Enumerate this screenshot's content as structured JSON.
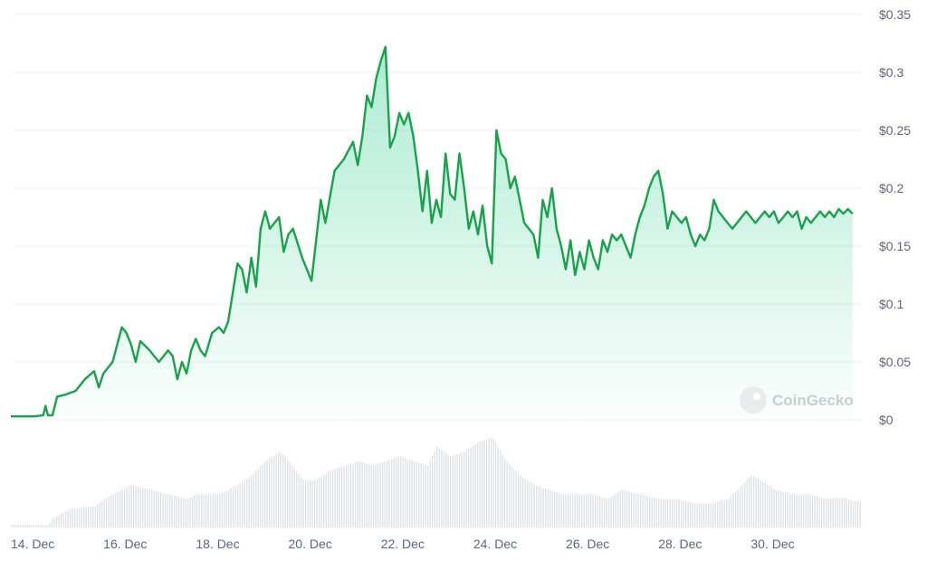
{
  "chart_data": {
    "type": "area",
    "title": "",
    "xlabel": "",
    "ylabel": "",
    "ylim": [
      0,
      0.35
    ],
    "y_ticks": [
      {
        "value": 0,
        "label": "$0"
      },
      {
        "value": 0.05,
        "label": "$0.05"
      },
      {
        "value": 0.1,
        "label": "$0.1"
      },
      {
        "value": 0.15,
        "label": "$0.15"
      },
      {
        "value": 0.2,
        "label": "$0.2"
      },
      {
        "value": 0.25,
        "label": "$0.25"
      },
      {
        "value": 0.3,
        "label": "$0.3"
      },
      {
        "value": 0.35,
        "label": "$0.35"
      }
    ],
    "x_ticks": [
      {
        "day": 14,
        "label": "14. Dec"
      },
      {
        "day": 16,
        "label": "16. Dec"
      },
      {
        "day": 18,
        "label": "18. Dec"
      },
      {
        "day": 20,
        "label": "20. Dec"
      },
      {
        "day": 22,
        "label": "22. Dec"
      },
      {
        "day": 24,
        "label": "24. Dec"
      },
      {
        "day": 26,
        "label": "26. Dec"
      },
      {
        "day": 28,
        "label": "28. Dec"
      },
      {
        "day": 30,
        "label": "30. Dec"
      }
    ],
    "xlim": [
      14,
      32.4
    ],
    "grid": true,
    "colors": {
      "line": "#16a34a",
      "area": "#16c784",
      "volume": "#dfe3e8",
      "grid": "#eff2f5"
    },
    "price": [
      [
        14.0,
        0.003
      ],
      [
        14.5,
        0.003
      ],
      [
        14.7,
        0.004
      ],
      [
        14.75,
        0.012
      ],
      [
        14.8,
        0.004
      ],
      [
        14.9,
        0.004
      ],
      [
        15.0,
        0.02
      ],
      [
        15.2,
        0.022
      ],
      [
        15.4,
        0.025
      ],
      [
        15.6,
        0.035
      ],
      [
        15.8,
        0.042
      ],
      [
        15.9,
        0.028
      ],
      [
        16.0,
        0.04
      ],
      [
        16.2,
        0.05
      ],
      [
        16.4,
        0.08
      ],
      [
        16.5,
        0.075
      ],
      [
        16.6,
        0.065
      ],
      [
        16.7,
        0.05
      ],
      [
        16.8,
        0.068
      ],
      [
        17.0,
        0.06
      ],
      [
        17.1,
        0.055
      ],
      [
        17.2,
        0.05
      ],
      [
        17.4,
        0.06
      ],
      [
        17.5,
        0.055
      ],
      [
        17.6,
        0.035
      ],
      [
        17.7,
        0.05
      ],
      [
        17.8,
        0.04
      ],
      [
        17.9,
        0.06
      ],
      [
        18.0,
        0.07
      ],
      [
        18.1,
        0.06
      ],
      [
        18.2,
        0.055
      ],
      [
        18.35,
        0.075
      ],
      [
        18.5,
        0.08
      ],
      [
        18.6,
        0.075
      ],
      [
        18.7,
        0.085
      ],
      [
        18.9,
        0.135
      ],
      [
        19.0,
        0.13
      ],
      [
        19.1,
        0.11
      ],
      [
        19.2,
        0.14
      ],
      [
        19.3,
        0.115
      ],
      [
        19.4,
        0.165
      ],
      [
        19.5,
        0.18
      ],
      [
        19.6,
        0.165
      ],
      [
        19.8,
        0.175
      ],
      [
        19.9,
        0.145
      ],
      [
        20.0,
        0.16
      ],
      [
        20.1,
        0.165
      ],
      [
        20.3,
        0.14
      ],
      [
        20.5,
        0.12
      ],
      [
        20.7,
        0.19
      ],
      [
        20.8,
        0.17
      ],
      [
        21.0,
        0.215
      ],
      [
        21.2,
        0.225
      ],
      [
        21.4,
        0.24
      ],
      [
        21.5,
        0.22
      ],
      [
        21.6,
        0.245
      ],
      [
        21.7,
        0.28
      ],
      [
        21.8,
        0.27
      ],
      [
        21.9,
        0.295
      ],
      [
        22.0,
        0.31
      ],
      [
        22.1,
        0.322
      ],
      [
        22.2,
        0.235
      ],
      [
        22.3,
        0.245
      ],
      [
        22.4,
        0.265
      ],
      [
        22.5,
        0.255
      ],
      [
        22.6,
        0.265
      ],
      [
        22.7,
        0.245
      ],
      [
        22.8,
        0.215
      ],
      [
        22.9,
        0.18
      ],
      [
        23.0,
        0.215
      ],
      [
        23.1,
        0.17
      ],
      [
        23.2,
        0.19
      ],
      [
        23.3,
        0.175
      ],
      [
        23.4,
        0.23
      ],
      [
        23.5,
        0.195
      ],
      [
        23.6,
        0.19
      ],
      [
        23.7,
        0.23
      ],
      [
        23.8,
        0.2
      ],
      [
        23.9,
        0.165
      ],
      [
        24.0,
        0.18
      ],
      [
        24.1,
        0.16
      ],
      [
        24.2,
        0.185
      ],
      [
        24.3,
        0.15
      ],
      [
        24.4,
        0.135
      ],
      [
        24.5,
        0.25
      ],
      [
        24.6,
        0.23
      ],
      [
        24.7,
        0.225
      ],
      [
        24.8,
        0.2
      ],
      [
        24.9,
        0.21
      ],
      [
        25.0,
        0.19
      ],
      [
        25.1,
        0.17
      ],
      [
        25.2,
        0.165
      ],
      [
        25.3,
        0.16
      ],
      [
        25.4,
        0.14
      ],
      [
        25.5,
        0.19
      ],
      [
        25.6,
        0.175
      ],
      [
        25.7,
        0.2
      ],
      [
        25.8,
        0.165
      ],
      [
        25.9,
        0.15
      ],
      [
        26.0,
        0.13
      ],
      [
        26.1,
        0.155
      ],
      [
        26.2,
        0.125
      ],
      [
        26.3,
        0.145
      ],
      [
        26.4,
        0.13
      ],
      [
        26.5,
        0.155
      ],
      [
        26.6,
        0.14
      ],
      [
        26.7,
        0.13
      ],
      [
        26.8,
        0.155
      ],
      [
        26.9,
        0.145
      ],
      [
        27.0,
        0.16
      ],
      [
        27.1,
        0.155
      ],
      [
        27.2,
        0.16
      ],
      [
        27.3,
        0.15
      ],
      [
        27.4,
        0.14
      ],
      [
        27.5,
        0.16
      ],
      [
        27.6,
        0.175
      ],
      [
        27.7,
        0.185
      ],
      [
        27.8,
        0.2
      ],
      [
        27.9,
        0.21
      ],
      [
        28.0,
        0.215
      ],
      [
        28.1,
        0.195
      ],
      [
        28.2,
        0.165
      ],
      [
        28.3,
        0.18
      ],
      [
        28.4,
        0.175
      ],
      [
        28.5,
        0.17
      ],
      [
        28.6,
        0.175
      ],
      [
        28.7,
        0.16
      ],
      [
        28.8,
        0.15
      ],
      [
        28.9,
        0.16
      ],
      [
        29.0,
        0.155
      ],
      [
        29.1,
        0.165
      ],
      [
        29.2,
        0.19
      ],
      [
        29.3,
        0.18
      ],
      [
        29.4,
        0.175
      ],
      [
        29.5,
        0.17
      ],
      [
        29.6,
        0.165
      ],
      [
        29.7,
        0.17
      ],
      [
        29.8,
        0.175
      ],
      [
        29.9,
        0.18
      ],
      [
        30.0,
        0.175
      ],
      [
        30.1,
        0.17
      ],
      [
        30.2,
        0.175
      ],
      [
        30.3,
        0.18
      ],
      [
        30.4,
        0.175
      ],
      [
        30.5,
        0.18
      ],
      [
        30.6,
        0.17
      ],
      [
        30.7,
        0.175
      ],
      [
        30.8,
        0.18
      ],
      [
        30.9,
        0.175
      ],
      [
        31.0,
        0.18
      ],
      [
        31.1,
        0.165
      ],
      [
        31.2,
        0.175
      ],
      [
        31.3,
        0.17
      ],
      [
        31.4,
        0.175
      ],
      [
        31.5,
        0.18
      ],
      [
        31.6,
        0.175
      ],
      [
        31.7,
        0.18
      ],
      [
        31.8,
        0.175
      ],
      [
        31.9,
        0.182
      ],
      [
        32.0,
        0.178
      ],
      [
        32.1,
        0.182
      ],
      [
        32.2,
        0.178
      ]
    ],
    "volume": [
      [
        14.0,
        0.03
      ],
      [
        14.5,
        0.03
      ],
      [
        14.8,
        0.03
      ],
      [
        14.9,
        0.1
      ],
      [
        15.3,
        0.2
      ],
      [
        15.8,
        0.22
      ],
      [
        16.0,
        0.3
      ],
      [
        16.4,
        0.4
      ],
      [
        16.6,
        0.45
      ],
      [
        16.8,
        0.42
      ],
      [
        17.0,
        0.4
      ],
      [
        17.4,
        0.35
      ],
      [
        17.8,
        0.3
      ],
      [
        18.0,
        0.35
      ],
      [
        18.5,
        0.35
      ],
      [
        18.9,
        0.45
      ],
      [
        19.2,
        0.55
      ],
      [
        19.5,
        0.7
      ],
      [
        19.8,
        0.8
      ],
      [
        20.0,
        0.7
      ],
      [
        20.3,
        0.5
      ],
      [
        20.6,
        0.5
      ],
      [
        20.9,
        0.6
      ],
      [
        21.2,
        0.65
      ],
      [
        21.5,
        0.7
      ],
      [
        21.8,
        0.65
      ],
      [
        22.1,
        0.7
      ],
      [
        22.4,
        0.75
      ],
      [
        22.7,
        0.7
      ],
      [
        23.0,
        0.65
      ],
      [
        23.2,
        0.85
      ],
      [
        23.5,
        0.75
      ],
      [
        23.8,
        0.8
      ],
      [
        24.1,
        0.9
      ],
      [
        24.4,
        0.95
      ],
      [
        24.7,
        0.7
      ],
      [
        25.0,
        0.55
      ],
      [
        25.3,
        0.45
      ],
      [
        25.6,
        0.4
      ],
      [
        25.9,
        0.35
      ],
      [
        26.2,
        0.35
      ],
      [
        26.6,
        0.35
      ],
      [
        26.9,
        0.3
      ],
      [
        27.2,
        0.4
      ],
      [
        27.6,
        0.35
      ],
      [
        28.0,
        0.3
      ],
      [
        28.4,
        0.3
      ],
      [
        28.8,
        0.25
      ],
      [
        29.1,
        0.25
      ],
      [
        29.5,
        0.3
      ],
      [
        29.8,
        0.45
      ],
      [
        30.0,
        0.55
      ],
      [
        30.2,
        0.5
      ],
      [
        30.5,
        0.4
      ],
      [
        30.9,
        0.35
      ],
      [
        31.3,
        0.35
      ],
      [
        31.6,
        0.3
      ],
      [
        32.0,
        0.32
      ],
      [
        32.2,
        0.28
      ]
    ],
    "watermark": "CoinGecko"
  }
}
